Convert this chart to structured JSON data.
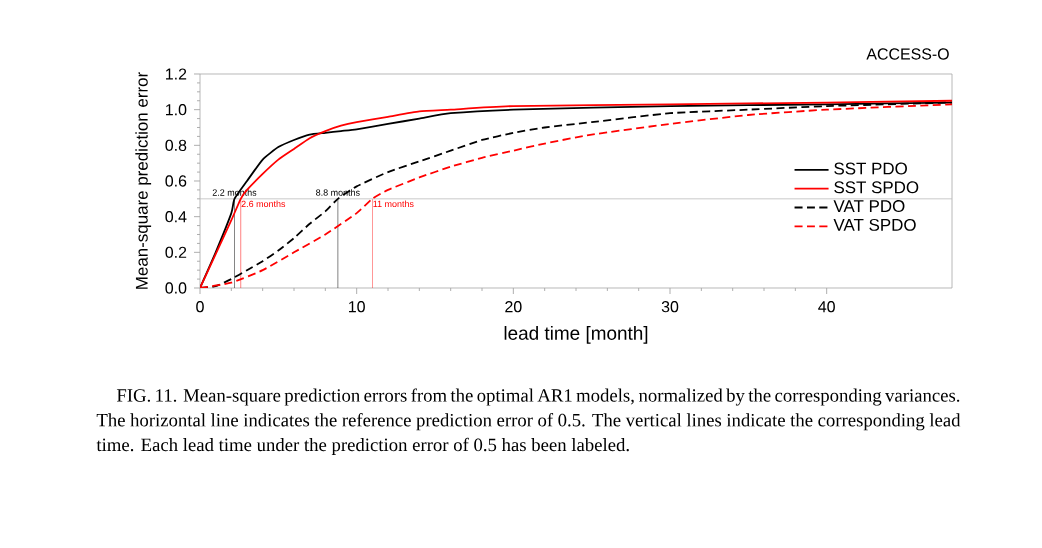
{
  "chart_data": {
    "type": "line",
    "title": "ACCESS-O",
    "xlabel": "lead time [month]",
    "ylabel": "Mean-square prediction error",
    "annotations": [
      "FIG. 11. Mean-square prediction errors from the optimal AR1 models, normalized by the corresponding variances. The horizontal line indicates the reference prediction error of 0.5. The vertical lines indicate the corresponding lead time. Each lead time under the prediction error of 0.5 has been labeled."
    ],
    "xlim": [
      0,
      48
    ],
    "ylim": [
      0,
      1.2
    ],
    "xticks": [
      0,
      10,
      20,
      30,
      40
    ],
    "yticks": [
      {
        "value": 0,
        "label": "0.0"
      },
      {
        "value": 0.2,
        "label": "0.2"
      },
      {
        "value": 0.4,
        "label": "0.4"
      },
      {
        "value": 0.6,
        "label": "0.6"
      },
      {
        "value": 0.8,
        "label": "0.8"
      },
      {
        "value": 1.0,
        "label": "1.0"
      },
      {
        "value": 1.2,
        "label": "1.2"
      }
    ],
    "legend": "right",
    "ref_lines": [
      {
        "axis": "y",
        "value": 0.5,
        "label": null,
        "color": "#bbbbbb"
      },
      {
        "axis": "x",
        "value": 2.2,
        "label": "2.2 months",
        "color": "#000000"
      },
      {
        "axis": "x",
        "value": 2.6,
        "label": "2.6 months",
        "color": "#ff0000"
      },
      {
        "axis": "x",
        "value": 8.8,
        "label": "8.8 months",
        "color": "#000000"
      },
      {
        "axis": "x",
        "value": 11,
        "label": "11 months",
        "color": "#ff0000"
      }
    ],
    "series": [
      {
        "name": "SST PDO",
        "color": "#000000",
        "line_style": "solid",
        "x": [
          0,
          1,
          2,
          2.2,
          3,
          4,
          5,
          6,
          7,
          8,
          9,
          10,
          12,
          14,
          16,
          20,
          30,
          40,
          48
        ],
        "values": [
          0,
          0.2,
          0.42,
          0.5,
          0.6,
          0.72,
          0.79,
          0.83,
          0.86,
          0.87,
          0.88,
          0.89,
          0.92,
          0.95,
          0.98,
          1.0,
          1.02,
          1.03,
          1.04
        ]
      },
      {
        "name": "SST SPDO",
        "color": "#ff0000",
        "line_style": "solid",
        "x": [
          0,
          1,
          2,
          2.6,
          3,
          4,
          5,
          6,
          7,
          8,
          9,
          10,
          12,
          14,
          16,
          20,
          30,
          40,
          48
        ],
        "values": [
          0,
          0.19,
          0.38,
          0.5,
          0.55,
          0.64,
          0.72,
          0.78,
          0.84,
          0.88,
          0.91,
          0.93,
          0.96,
          0.99,
          1.0,
          1.02,
          1.03,
          1.04,
          1.05
        ]
      },
      {
        "name": "VAT PDO",
        "color": "#000000",
        "line_style": "dashed",
        "x": [
          0,
          1,
          2,
          3,
          4,
          5,
          6,
          7,
          8,
          8.8,
          10,
          12,
          14,
          16,
          18,
          20,
          22,
          25,
          30,
          35,
          40,
          48
        ],
        "values": [
          0,
          0.01,
          0.05,
          0.1,
          0.15,
          0.21,
          0.28,
          0.36,
          0.43,
          0.5,
          0.57,
          0.65,
          0.71,
          0.77,
          0.83,
          0.87,
          0.9,
          0.93,
          0.98,
          1.0,
          1.02,
          1.04
        ]
      },
      {
        "name": "VAT SPDO",
        "color": "#ff0000",
        "line_style": "dashed",
        "x": [
          0,
          2,
          4,
          6,
          8,
          10,
          11,
          12,
          14,
          16,
          18,
          20,
          22,
          25,
          30,
          35,
          40,
          48
        ],
        "values": [
          0,
          0.03,
          0.1,
          0.2,
          0.3,
          0.42,
          0.5,
          0.55,
          0.62,
          0.68,
          0.73,
          0.77,
          0.81,
          0.86,
          0.92,
          0.97,
          1.0,
          1.03
        ]
      }
    ]
  }
}
